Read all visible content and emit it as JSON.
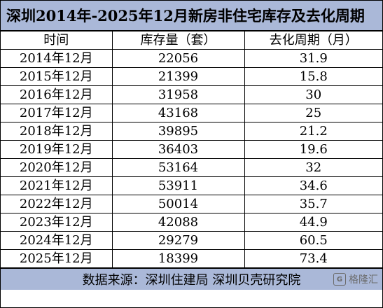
{
  "title": "深圳2014年-2025年12月新房非住宅库存及去化周期",
  "table": {
    "headers": [
      "时间",
      "库存量（套）",
      "去化周期（月）"
    ],
    "rows": [
      [
        "2014年12月",
        "22056",
        "31.9"
      ],
      [
        "2015年12月",
        "21399",
        "15.8"
      ],
      [
        "2016年12月",
        "31958",
        "30"
      ],
      [
        "2017年12月",
        "43168",
        "25"
      ],
      [
        "2018年12月",
        "39895",
        "21.2"
      ],
      [
        "2019年12月",
        "36403",
        "19.6"
      ],
      [
        "2020年12月",
        "53164",
        "32"
      ],
      [
        "2021年12月",
        "53911",
        "34.6"
      ],
      [
        "2022年12月",
        "50014",
        "35.7"
      ],
      [
        "2023年12月",
        "42088",
        "44.9"
      ],
      [
        "2024年12月",
        "29279",
        "60.5"
      ],
      [
        "2025年12月",
        "18399",
        "73.4"
      ]
    ]
  },
  "source": "数据来源：深圳住建局 深圳贝壳研究院",
  "watermark": {
    "logo_text": "G",
    "text": "格隆汇"
  },
  "colors": {
    "header_band": "#aab8d8",
    "border": "#000000"
  }
}
